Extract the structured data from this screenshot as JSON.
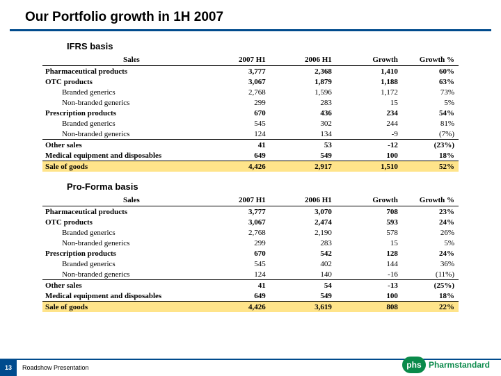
{
  "title": "Our Portfolio growth in 1H 2007",
  "section1_label": "IFRS basis",
  "section2_label": "Pro-Forma basis",
  "columns": {
    "sales": "Sales",
    "h1_2007": "2007 H1",
    "h1_2006": "2006 H1",
    "growth": "Growth",
    "growth_pct": "Growth %"
  },
  "table1": {
    "rows": [
      {
        "level": 0,
        "label": "Pharmaceutical products",
        "v1": "3,777",
        "v2": "2,368",
        "g": "1,410",
        "p": "60%"
      },
      {
        "level": 1,
        "label": "OTC products",
        "v1": "3,067",
        "v2": "1,879",
        "g": "1,188",
        "p": "63%"
      },
      {
        "level": 2,
        "label": "Branded generics",
        "v1": "2,768",
        "v2": "1,596",
        "g": "1,172",
        "p": "73%"
      },
      {
        "level": 2,
        "label": "Non-branded generics",
        "v1": "299",
        "v2": "283",
        "g": "15",
        "p": "5%"
      },
      {
        "level": 1,
        "label": "Prescription products",
        "v1": "670",
        "v2": "436",
        "g": "234",
        "p": "54%"
      },
      {
        "level": 2,
        "label": "Branded generics",
        "v1": "545",
        "v2": "302",
        "g": "244",
        "p": "81%"
      },
      {
        "level": 2,
        "label": "Non-branded generics",
        "v1": "124",
        "v2": "134",
        "g": "-9",
        "p": "(7%)"
      },
      {
        "level": 0,
        "label": "Other sales",
        "v1": "41",
        "v2": "53",
        "g": "-12",
        "p": "(23%)",
        "sep": true
      },
      {
        "level": 0,
        "label": "Medical equipment and disposables",
        "v1": "649",
        "v2": "549",
        "g": "100",
        "p": "18%"
      }
    ],
    "total": {
      "label": "Sale of goods",
      "v1": "4,426",
      "v2": "2,917",
      "g": "1,510",
      "p": "52%"
    }
  },
  "table2": {
    "rows": [
      {
        "level": 0,
        "label": "Pharmaceutical products",
        "v1": "3,777",
        "v2": "3,070",
        "g": "708",
        "p": "23%"
      },
      {
        "level": 1,
        "label": "OTC products",
        "v1": "3,067",
        "v2": "2,474",
        "g": "593",
        "p": "24%"
      },
      {
        "level": 2,
        "label": "Branded generics",
        "v1": "2,768",
        "v2": "2,190",
        "g": "578",
        "p": "26%"
      },
      {
        "level": 2,
        "label": "Non-branded generics",
        "v1": "299",
        "v2": "283",
        "g": "15",
        "p": "5%"
      },
      {
        "level": 1,
        "label": "Prescription products",
        "v1": "670",
        "v2": "542",
        "g": "128",
        "p": "24%"
      },
      {
        "level": 2,
        "label": "Branded generics",
        "v1": "545",
        "v2": "402",
        "g": "144",
        "p": "36%"
      },
      {
        "level": 2,
        "label": "Non-branded generics",
        "v1": "124",
        "v2": "140",
        "g": "-16",
        "p": "(11%)"
      },
      {
        "level": 0,
        "label": "Other sales",
        "v1": "41",
        "v2": "54",
        "g": "-13",
        "p": "(25%)",
        "sep": true
      },
      {
        "level": 0,
        "label": "Medical equipment and disposables",
        "v1": "649",
        "v2": "549",
        "g": "100",
        "p": "18%"
      }
    ],
    "total": {
      "label": "Sale of goods",
      "v1": "4,426",
      "v2": "3,619",
      "g": "808",
      "p": "22%"
    }
  },
  "footer": {
    "page": "13",
    "text": "Roadshow Presentation",
    "logo_abbr": "phs",
    "logo_name": "Pharmstandard"
  },
  "colors": {
    "accent": "#004b8d",
    "highlight": "#ffe48a",
    "logo_green": "#0a8a4a"
  }
}
